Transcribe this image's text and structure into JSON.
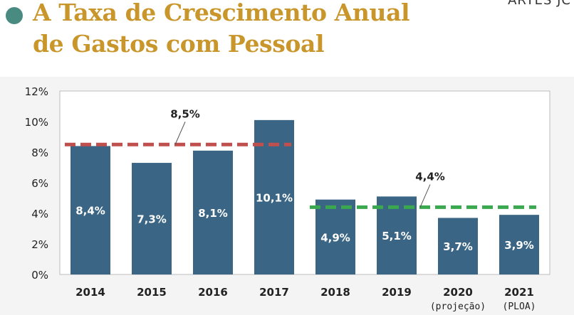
{
  "header": {
    "title_line1": "A Taxa de Crescimento Anual",
    "title_line2": "de Gastos com Pessoal",
    "credit": "ARTES JC",
    "accent_color": "#c9962b",
    "dot_color": "#4a8b81"
  },
  "chart_data": {
    "type": "bar",
    "title": "A Taxa de Crescimento Anual de Gastos com Pessoal",
    "categories": [
      "2014",
      "2015",
      "2016",
      "2017",
      "2018",
      "2019",
      "2020\n(projeção)",
      "2021\n(PLOA)"
    ],
    "values": [
      8.4,
      7.3,
      8.1,
      10.1,
      4.9,
      5.1,
      3.7,
      3.9
    ],
    "value_labels": [
      "8,4%",
      "7,3%",
      "8,1%",
      "10,1%",
      "4,9%",
      "5,1%",
      "3,7%",
      "3,9%"
    ],
    "ylim": [
      0,
      12
    ],
    "yticks": [
      0,
      2,
      4,
      6,
      8,
      10,
      12
    ],
    "ytick_labels": [
      "0%",
      "2%",
      "4%",
      "6%",
      "8%",
      "10%",
      "12%"
    ],
    "bar_color": "#3a6584",
    "grid": false,
    "legend": "none",
    "averages": [
      {
        "label": "8,5%",
        "value": 8.5,
        "from_index": 0,
        "to_index": 3,
        "color": "#c0504d",
        "style": "dashed"
      },
      {
        "label": "4,4%",
        "value": 4.4,
        "from_index": 4,
        "to_index": 7,
        "color": "#3aa84f",
        "style": "dashed"
      }
    ]
  }
}
